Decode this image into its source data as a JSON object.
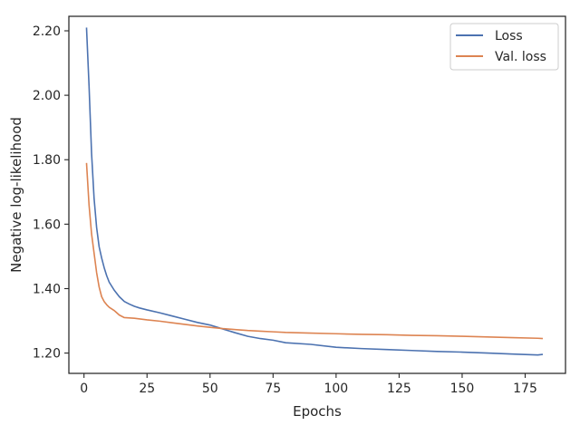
{
  "colors": {
    "loss": "#4c72b0",
    "val_loss": "#dd8452",
    "axis": "#262626",
    "legend_border": "#cccccc"
  },
  "chart_data": {
    "type": "line",
    "title": "",
    "xlabel": "Epochs",
    "ylabel": "Negative log-likelihood",
    "xlim": [
      -6,
      191
    ],
    "ylim": [
      1.137,
      2.245
    ],
    "xticks": [
      0,
      25,
      50,
      75,
      100,
      125,
      150,
      175
    ],
    "xtick_labels": [
      "0",
      "25",
      "50",
      "75",
      "100",
      "125",
      "150",
      "175"
    ],
    "yticks": [
      1.2,
      1.4,
      1.6,
      1.8,
      2.0,
      2.2
    ],
    "ytick_labels": [
      "1.20",
      "1.40",
      "1.60",
      "1.80",
      "2.00",
      "2.20"
    ],
    "grid": false,
    "legend_position": "top-right",
    "series": [
      {
        "name": "Loss",
        "color_key": "loss",
        "points": [
          [
            1,
            2.21
          ],
          [
            2,
            2.03
          ],
          [
            3,
            1.82
          ],
          [
            4,
            1.68
          ],
          [
            5,
            1.59
          ],
          [
            6,
            1.53
          ],
          [
            7,
            1.495
          ],
          [
            8,
            1.465
          ],
          [
            9,
            1.44
          ],
          [
            10,
            1.42
          ],
          [
            12,
            1.395
          ],
          [
            14,
            1.375
          ],
          [
            16,
            1.36
          ],
          [
            18,
            1.352
          ],
          [
            20,
            1.345
          ],
          [
            22,
            1.34
          ],
          [
            25,
            1.334
          ],
          [
            30,
            1.325
          ],
          [
            35,
            1.315
          ],
          [
            40,
            1.305
          ],
          [
            45,
            1.295
          ],
          [
            50,
            1.287
          ],
          [
            55,
            1.275
          ],
          [
            60,
            1.263
          ],
          [
            65,
            1.252
          ],
          [
            70,
            1.245
          ],
          [
            75,
            1.24
          ],
          [
            80,
            1.232
          ],
          [
            90,
            1.227
          ],
          [
            100,
            1.218
          ],
          [
            110,
            1.214
          ],
          [
            120,
            1.211
          ],
          [
            130,
            1.208
          ],
          [
            140,
            1.205
          ],
          [
            150,
            1.203
          ],
          [
            160,
            1.2
          ],
          [
            170,
            1.197
          ],
          [
            180,
            1.194
          ],
          [
            182,
            1.196
          ]
        ]
      },
      {
        "name": "Val. loss",
        "color_key": "val_loss",
        "points": [
          [
            1,
            1.79
          ],
          [
            2,
            1.66
          ],
          [
            3,
            1.57
          ],
          [
            4,
            1.51
          ],
          [
            5,
            1.45
          ],
          [
            6,
            1.405
          ],
          [
            7,
            1.375
          ],
          [
            8,
            1.36
          ],
          [
            9,
            1.35
          ],
          [
            10,
            1.342
          ],
          [
            12,
            1.332
          ],
          [
            14,
            1.318
          ],
          [
            16,
            1.31
          ],
          [
            20,
            1.308
          ],
          [
            25,
            1.303
          ],
          [
            30,
            1.299
          ],
          [
            35,
            1.294
          ],
          [
            40,
            1.289
          ],
          [
            45,
            1.284
          ],
          [
            50,
            1.28
          ],
          [
            55,
            1.276
          ],
          [
            60,
            1.273
          ],
          [
            65,
            1.27
          ],
          [
            70,
            1.268
          ],
          [
            75,
            1.266
          ],
          [
            80,
            1.264
          ],
          [
            90,
            1.262
          ],
          [
            100,
            1.26
          ],
          [
            110,
            1.258
          ],
          [
            120,
            1.257
          ],
          [
            130,
            1.255
          ],
          [
            140,
            1.254
          ],
          [
            150,
            1.252
          ],
          [
            160,
            1.25
          ],
          [
            170,
            1.248
          ],
          [
            180,
            1.246
          ],
          [
            182,
            1.245
          ]
        ]
      }
    ]
  }
}
